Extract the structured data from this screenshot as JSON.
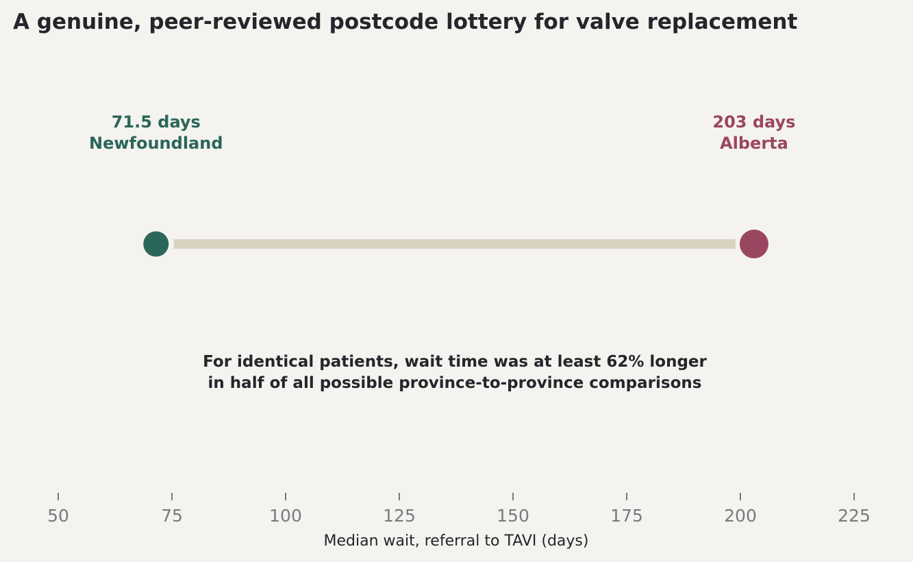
{
  "chart_data": {
    "type": "dumbbell",
    "title": "A genuine, peer-reviewed postcode lottery for valve replacement",
    "xlabel": "Median wait, referral to TAVI (days)",
    "ylabel": "",
    "xlim": [
      50,
      230
    ],
    "xticks": [
      50,
      75,
      100,
      125,
      150,
      175,
      200,
      225
    ],
    "grid": false,
    "points": [
      {
        "name": "Newfoundland",
        "value": 71.5,
        "value_label": "71.5 days",
        "color": "#2a6659"
      },
      {
        "name": "Alberta",
        "value": 203,
        "value_label": "203 days",
        "color": "#9b4660"
      }
    ],
    "connector_color": "#d9d3c1",
    "annotation": [
      "For identical patients, wait time was at least 62% longer",
      "in half of all possible province-to-province comparisons"
    ]
  },
  "colors": {
    "background": "#f4f3ef",
    "text": "#24262b",
    "tick": "#767a80"
  }
}
